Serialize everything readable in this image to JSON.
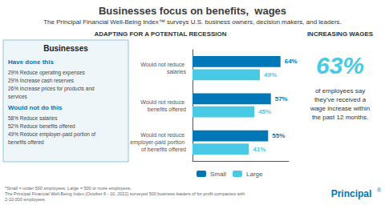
{
  "chart_data": {
    "type": "bar",
    "orientation": "horizontal",
    "title": "Businesses focus on benefits,  wages",
    "subtitle": "The Principal Financial Well-Being Index™ surveys U.S. business owners, decision makers, and leaders.",
    "annotations": [
      "ADAPTING FOR A POTENTIAL RECESSION",
      "INCREASING WAGES",
      "Businesses",
      "Have done this",
      "29% Reduce operating expenses",
      "29% Increase cash reserves",
      "26% Increase prices for products and services",
      "Would not do this",
      "58% Reduce salaries",
      "52% Reduce benefits offered",
      "49% Reduce employer-paid portion of benefits offered",
      "63%",
      "of employees say\nthey've received a\nwage increase within\nthe past 12 months.",
      "*Small = under 500 employees. Large = 500 or more employees.\nThe Principal Financial Well-Being Index (October 6 - 10, 2022) surveyed 500 business leaders of for-profit companies with 2-10,000 employees.",
      "Principal",
      "®"
    ],
    "categories": [
      "Would not reduce salaries",
      "Would not reduce benefits offered",
      "Would not reduce employer-paid portion of benefits offered"
    ],
    "series": [
      {
        "name": "Small",
        "color": "#0077b6",
        "values": [
          64,
          57,
          55
        ],
        "value_labels": [
          "64%",
          "57%",
          "55%"
        ]
      },
      {
        "name": "Large",
        "color": "#48cae4",
        "values": [
          49,
          45,
          41
        ],
        "value_labels": [
          "49%",
          "45%",
          "41%"
        ]
      }
    ],
    "xlim": [
      0,
      70
    ],
    "xticks": [
      0,
      10,
      20,
      30,
      40,
      50,
      60,
      70
    ],
    "tick_labels": "y",
    "grid": false,
    "legend": "bottom",
    "data_labels": true
  }
}
